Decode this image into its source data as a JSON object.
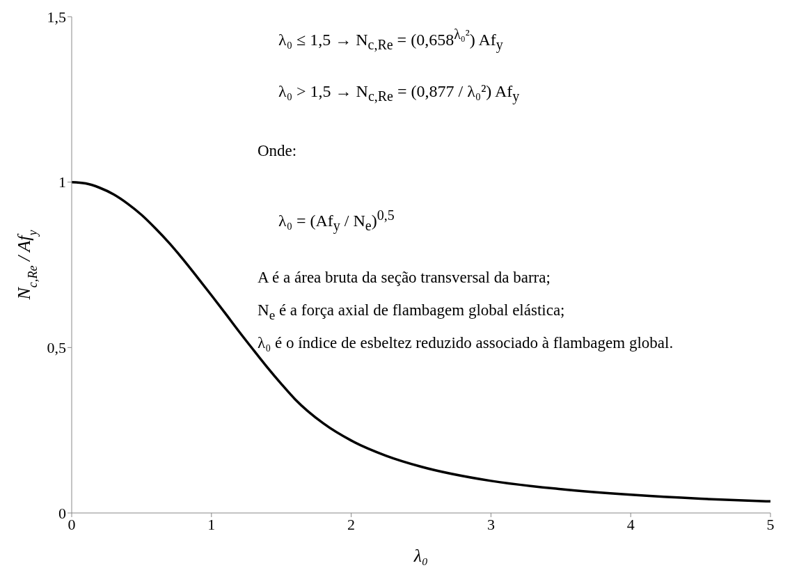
{
  "chart_data": {
    "type": "line",
    "xlabel": "λ₀",
    "ylabel": "N$_{c,Re}$ / Af$_{y}$",
    "x": [
      0,
      0.1,
      0.2,
      0.3,
      0.4,
      0.5,
      0.6,
      0.7,
      0.8,
      0.9,
      1.0,
      1.1,
      1.2,
      1.3,
      1.4,
      1.5,
      1.6,
      1.8,
      2.0,
      2.25,
      2.5,
      3.0,
      3.5,
      4.0,
      4.5,
      5.0
    ],
    "series": [
      {
        "color": "#000000",
        "values": [
          1,
          0.996,
          0.983,
          0.963,
          0.935,
          0.901,
          0.86,
          0.815,
          0.765,
          0.712,
          0.658,
          0.603,
          0.547,
          0.493,
          0.44,
          0.39,
          0.343,
          0.271,
          0.219,
          0.173,
          0.14,
          0.097,
          0.072,
          0.055,
          0.043,
          0.035
        ]
      }
    ],
    "xlim": [
      0,
      5
    ],
    "xticks": [
      0,
      1,
      2,
      3,
      4,
      5
    ],
    "ylim": [
      0,
      1.5
    ],
    "yticks": [
      0,
      {
        "value": 0.5,
        "label": "0,5"
      },
      1,
      {
        "value": 1.5,
        "label": "1,5"
      }
    ],
    "grid": false,
    "marker": "none",
    "line_style": "solid",
    "annotations": [
      "λ₀ ≤ 1,5 → N$_{c,Re}$ = (0,658$^{λ₀²}$) Af$_{y}$",
      "λ₀ > 1,5 → N$_{c,Re}$ = (0,877 / λ₀²) Af$_{y}$",
      "Onde:",
      "λ₀ = (Af$_{y}$ / N$_{e}$)$^{0,5}$",
      "A é a área bruta da seção transversal da barra;",
      "N$_{e}$ é a força axial de flambagem global elástica;",
      "λ₀ é o índice de esbeltez reduzido associado à flambagem global."
    ]
  }
}
